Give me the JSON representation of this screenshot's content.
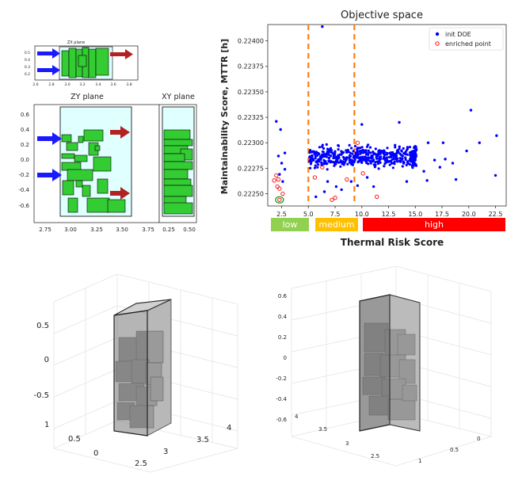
{
  "zx": {
    "title": "ZX plane",
    "xticks": [
      "2.6",
      "2.8",
      "3.0",
      "3.2",
      "3.4",
      "3.6",
      "3.8"
    ],
    "yticks": [
      "0.5",
      "0.4",
      "0.3",
      "0.2"
    ]
  },
  "zy": {
    "title": "ZY plane",
    "xticks": [
      "2.75",
      "3.00",
      "3.25",
      "3.50",
      "3.75"
    ],
    "yticks": [
      "0.6",
      "0.4",
      "0.2",
      "0.0",
      "-0.2",
      "-0.4",
      "-0.6"
    ]
  },
  "xy": {
    "title": "XY plane",
    "xticks": [
      "0.25",
      "0.50"
    ]
  },
  "bands": [
    {
      "label": "low",
      "color": "#92d050"
    },
    {
      "label": "medium",
      "color": "#ffc000"
    },
    {
      "label": "high",
      "color": "#ff0000"
    }
  ],
  "band_axis_label": "Thermal Risk Score",
  "iso1": {
    "zticks": [
      "0.5",
      "0",
      "-0.5"
    ],
    "yticks": [
      "1",
      "0.5",
      "0"
    ],
    "xticks": [
      "2.5",
      "3",
      "3.5",
      "4"
    ]
  },
  "iso2": {
    "zticks": [
      "0.6",
      "0.4",
      "0.2",
      "0",
      "-0.2",
      "-0.4",
      "-0.6"
    ],
    "yticks": [
      "4",
      "3.5",
      "3",
      "2.5"
    ],
    "xticks": [
      "1",
      "0.5",
      "0"
    ]
  },
  "chart_data": {
    "type": "scatter",
    "title": "Objective space",
    "xlabel": "",
    "ylabel": "Maintainability Score, MTTR [h]",
    "xlim": [
      1.2,
      23.5
    ],
    "ylim": [
      0.22238,
      0.22416
    ],
    "xticks": [
      2.5,
      5.0,
      7.5,
      10.0,
      12.5,
      15.0,
      17.5,
      20.0,
      22.5
    ],
    "xtick_labels": [
      "2.5",
      "5.0",
      "7.5",
      "10.0",
      "12.5",
      "15.0",
      "17.5",
      "20.0",
      "22.5"
    ],
    "yticks": [
      0.2225,
      0.22275,
      0.223,
      0.22325,
      0.2235,
      0.22375,
      0.224
    ],
    "ytick_labels": [
      "0.22250",
      "0.22275",
      "0.22300",
      "0.22325",
      "0.22350",
      "0.22375",
      "0.22400"
    ],
    "vlines": [
      5.0,
      9.3
    ],
    "legend_position": "top-right",
    "series": [
      {
        "name": "init DOE",
        "color": "#0000ff",
        "marker": "filled",
        "points": [
          [
            6.3,
            0.22414
          ],
          [
            2.0,
            0.22321
          ],
          [
            20.2,
            0.22332
          ],
          [
            2.4,
            0.22313
          ],
          [
            10.0,
            0.22318
          ],
          [
            13.5,
            0.2232
          ],
          [
            22.6,
            0.22307
          ],
          [
            21.0,
            0.223
          ],
          [
            19.8,
            0.22292
          ],
          [
            17.6,
            0.223
          ],
          [
            18.5,
            0.2228
          ],
          [
            18.8,
            0.22264
          ],
          [
            22.5,
            0.22268
          ],
          [
            16.8,
            0.22283
          ],
          [
            17.3,
            0.22276
          ],
          [
            16.2,
            0.223
          ],
          [
            15.8,
            0.22272
          ],
          [
            16.1,
            0.22263
          ],
          [
            17.8,
            0.22284
          ],
          [
            2.8,
            0.2229
          ],
          [
            2.5,
            0.2228
          ],
          [
            2.2,
            0.22287
          ],
          [
            2.8,
            0.22274
          ],
          [
            2.3,
            0.22269
          ],
          [
            2.6,
            0.22262
          ],
          [
            5.7,
            0.22247
          ],
          [
            6.5,
            0.22252
          ],
          [
            8.1,
            0.22254
          ],
          [
            9.6,
            0.22258
          ],
          [
            11.1,
            0.22257
          ],
          [
            6.8,
            0.22262
          ],
          [
            10.5,
            0.22266
          ],
          [
            14.2,
            0.22262
          ],
          [
            9.0,
            0.22262
          ],
          [
            7.6,
            0.22257
          ]
        ]
      },
      {
        "name": "enriched point",
        "color": "#ff0000",
        "marker": "hollow",
        "points": [
          [
            1.8,
            0.22263
          ],
          [
            2.0,
            0.22268
          ],
          [
            2.2,
            0.22264
          ],
          [
            2.1,
            0.22257
          ],
          [
            2.3,
            0.22255
          ],
          [
            2.6,
            0.2225
          ],
          [
            2.3,
            0.22244
          ],
          [
            7.2,
            0.22244
          ],
          [
            7.5,
            0.22246
          ],
          [
            11.4,
            0.22247
          ],
          [
            10.1,
            0.2227
          ],
          [
            8.6,
            0.22264
          ],
          [
            6.3,
            0.22276
          ],
          [
            9.6,
            0.223
          ],
          [
            5.6,
            0.22266
          ]
        ]
      }
    ],
    "cloud": {
      "name": "init DOE",
      "x_range": [
        5.1,
        15.0
      ],
      "y_center": 0.22287,
      "y_spread": 0.00012,
      "count": 460
    },
    "highlight": {
      "x": 2.3,
      "y": 0.22244,
      "color": "#2ca02c"
    }
  }
}
